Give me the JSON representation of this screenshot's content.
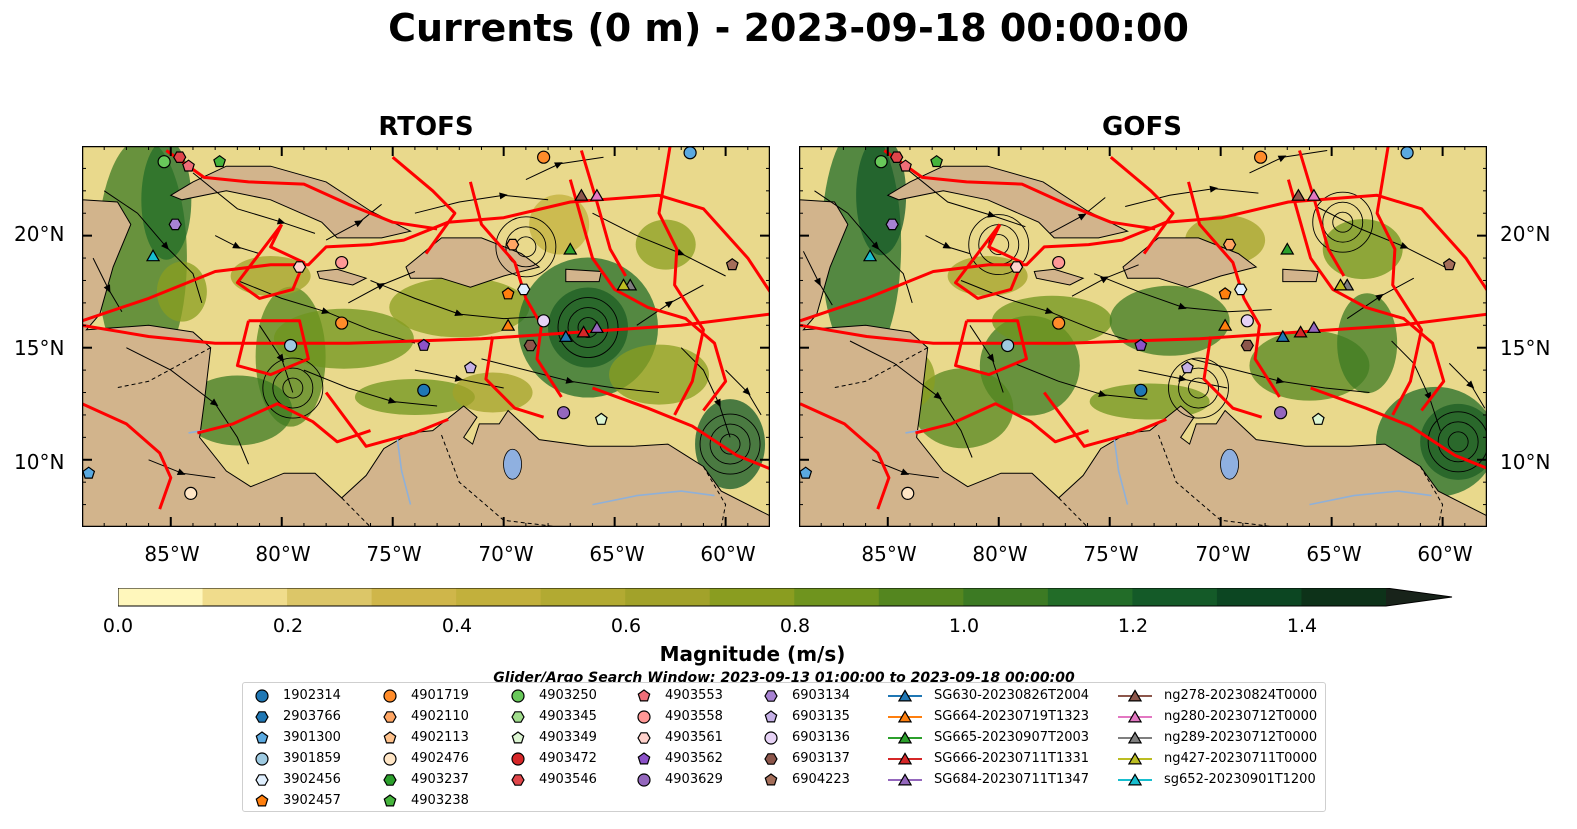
{
  "title": "Currents (0 m) - 2023-09-18 00:00:00",
  "panels": [
    {
      "title": "RTOFS"
    },
    {
      "title": "GOFS"
    }
  ],
  "map": {
    "lat_labels": [
      "20°N",
      "15°N",
      "10°N"
    ],
    "lon_labels": [
      "85°W",
      "80°W",
      "75°W",
      "70°W",
      "65°W",
      "60°W"
    ],
    "extent": {
      "lon": [
        -89,
        -58
      ],
      "lat": [
        7,
        24
      ]
    },
    "colors": {
      "land": "#d2b48c",
      "glider_tracks": "#ff0000",
      "rivers": "#8fb0d8",
      "streamlines": "#000000"
    }
  },
  "colorbar": {
    "label": "Magnitude (m/s)",
    "ticks": [
      "0.0",
      "0.2",
      "0.4",
      "0.6",
      "0.8",
      "1.0",
      "1.2",
      "1.4"
    ],
    "range": [
      0,
      1.5
    ],
    "extend": "max",
    "colors": [
      "#fff7bc",
      "#f0dc8c",
      "#dcc668",
      "#cfb64a",
      "#c2b03c",
      "#b2aa32",
      "#a2a22a",
      "#8a9d20",
      "#6f941e",
      "#54861f",
      "#3c7a23",
      "#226c28",
      "#145a28",
      "#0c4622",
      "#0d3219",
      "#18231a"
    ]
  },
  "legend": {
    "title": "Glider/Argo Search Window: 2023-09-13 01:00:00 to 2023-09-18 00:00:00",
    "columns": [
      [
        {
          "label": "1902314",
          "marker": "circle",
          "color": "#1f77b4"
        },
        {
          "label": "2903766",
          "marker": "hexagon",
          "color": "#1f77b4"
        },
        {
          "label": "3901300",
          "marker": "pentagon",
          "color": "#5aa9e0"
        },
        {
          "label": "3901859",
          "marker": "circle",
          "color": "#9ecae1"
        },
        {
          "label": "3902456",
          "marker": "hexagon",
          "color": "#e0f0ff"
        },
        {
          "label": "3902457",
          "marker": "pentagon",
          "color": "#ff7f0e"
        }
      ],
      [
        {
          "label": "4901719",
          "marker": "circle",
          "color": "#ff8c2a"
        },
        {
          "label": "4902110",
          "marker": "hexagon",
          "color": "#ffa664"
        },
        {
          "label": "4902113",
          "marker": "pentagon",
          "color": "#ffc28c"
        },
        {
          "label": "4902476",
          "marker": "circle",
          "color": "#ffe6c6"
        },
        {
          "label": "4903237",
          "marker": "hexagon",
          "color": "#2ca02c"
        },
        {
          "label": "4903238",
          "marker": "pentagon",
          "color": "#46b43c"
        }
      ],
      [
        {
          "label": "4903250",
          "marker": "circle",
          "color": "#68c85a"
        },
        {
          "label": "4903345",
          "marker": "hexagon",
          "color": "#a0dc8c"
        },
        {
          "label": "4903349",
          "marker": "pentagon",
          "color": "#dcf5d2"
        },
        {
          "label": "4903472",
          "marker": "circle",
          "color": "#d62728"
        },
        {
          "label": "4903546",
          "marker": "hexagon",
          "color": "#e0464a"
        }
      ],
      [
        {
          "label": "4903553",
          "marker": "pentagon",
          "color": "#ee6e78"
        },
        {
          "label": "4903558",
          "marker": "circle",
          "color": "#ff9896"
        },
        {
          "label": "4903561",
          "marker": "hexagon",
          "color": "#ffd2cc"
        },
        {
          "label": "4903562",
          "marker": "pentagon",
          "color": "#8c52c8"
        },
        {
          "label": "4903629",
          "marker": "circle",
          "color": "#9467bd"
        }
      ],
      [
        {
          "label": "6903134",
          "marker": "hexagon",
          "color": "#a782d2"
        },
        {
          "label": "6903135",
          "marker": "pentagon",
          "color": "#c5b0e6"
        },
        {
          "label": "6903136",
          "marker": "circle",
          "color": "#e6d2f5"
        },
        {
          "label": "6903137",
          "marker": "hexagon",
          "color": "#8c564b"
        },
        {
          "label": "6904223",
          "marker": "pentagon",
          "color": "#a46e5a"
        }
      ],
      [
        {
          "label": "SG630-20230826T2004",
          "marker": "triangle",
          "color": "#1f77b4"
        },
        {
          "label": "SG664-20230719T1323",
          "marker": "triangle",
          "color": "#ff7f0e"
        },
        {
          "label": "SG665-20230907T2003",
          "marker": "triangle",
          "color": "#2ca02c"
        },
        {
          "label": "SG666-20230711T1331",
          "marker": "triangle",
          "color": "#d62728"
        },
        {
          "label": "SG684-20230711T1347",
          "marker": "triangle",
          "color": "#9467bd"
        }
      ],
      [
        {
          "label": "ng278-20230824T0000",
          "marker": "triangle",
          "color": "#8c564b"
        },
        {
          "label": "ng280-20230712T0000",
          "marker": "triangle",
          "color": "#e377c2"
        },
        {
          "label": "ng289-20230712T0000",
          "marker": "triangle",
          "color": "#7f7f7f"
        },
        {
          "label": "ng427-20230711T0000",
          "marker": "triangle",
          "color": "#bcbd22"
        },
        {
          "label": "sg652-20230901T1200",
          "marker": "triangle",
          "color": "#17becf"
        }
      ]
    ]
  }
}
